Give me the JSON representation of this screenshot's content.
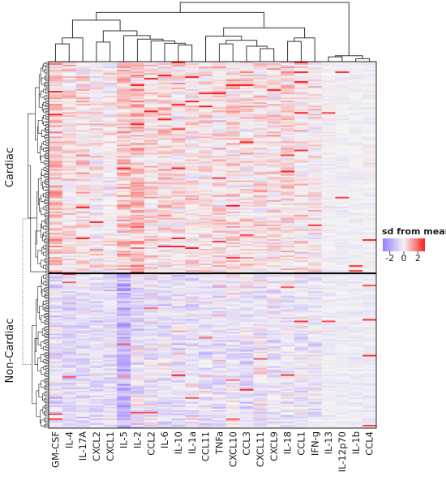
{
  "chart_data": {
    "type": "heatmap",
    "columns": [
      "GM-CSF",
      "IL-4",
      "IL-17A",
      "CXCL2",
      "CXCL1",
      "IL-5",
      "IL-2",
      "CCL2",
      "IL-6",
      "IL-10",
      "IL-1a",
      "CCL11",
      "TNFa",
      "CXCL10",
      "CCL3",
      "CXCL11",
      "CXCL9",
      "IL-18",
      "CCL1",
      "IFN-g",
      "IL-13",
      "IL-12p70",
      "IL-1b",
      "CCL4"
    ],
    "row_groups": [
      {
        "name": "Cardiac",
        "rows": 130
      },
      {
        "name": "Non-Cardiac",
        "rows": 95
      }
    ],
    "legend": {
      "title": "sd from mean",
      "ticks": [
        -2,
        0,
        2
      ],
      "range": [
        -3,
        3
      ],
      "low_color": "#9b7bff",
      "mid_color": "#f4f4f4",
      "high_color": "#ff2020",
      "placement": "right"
    },
    "column_dendrogram": true,
    "row_dendrogram": true,
    "group_separator_color": "#000000"
  }
}
